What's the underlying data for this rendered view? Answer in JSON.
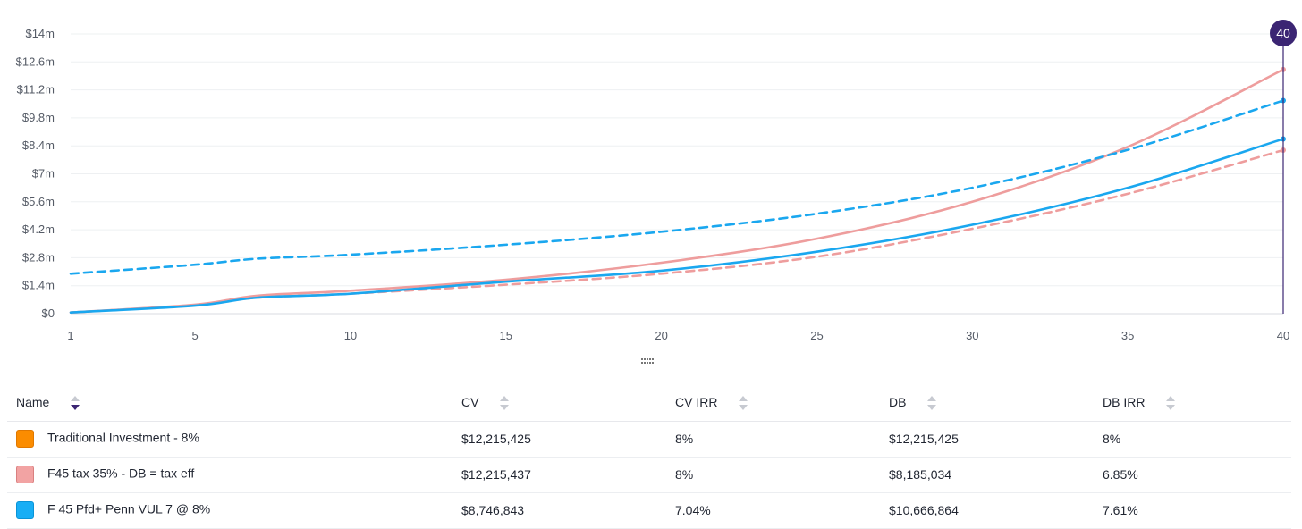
{
  "chart_data": {
    "type": "line",
    "x": [
      1,
      5,
      7,
      10,
      15,
      20,
      25,
      30,
      35,
      40
    ],
    "xticks": [
      "1",
      "5",
      "10",
      "15",
      "20",
      "25",
      "30",
      "35",
      "40"
    ],
    "yticks": [
      "$0",
      "$1.4m",
      "$2.8m",
      "$4.2m",
      "$5.6m",
      "$7m",
      "$8.4m",
      "$9.8m",
      "$11.2m",
      "$12.6m",
      "$14m"
    ],
    "ylim": [
      0,
      14000000
    ],
    "xlim": [
      1,
      40
    ],
    "grid": true,
    "series": [
      {
        "name": "F45 tax 35% - CV",
        "color": "#ee9d9d",
        "dashed": false,
        "values": [
          60000,
          450000,
          900000,
          1150000,
          1700000,
          2550000,
          3750000,
          5600000,
          8350000,
          12215437
        ]
      },
      {
        "name": "F45 tax 35% - DB",
        "color": "#ee9d9d",
        "dashed": true,
        "values": [
          60000,
          430000,
          800000,
          1000000,
          1450000,
          2000000,
          2850000,
          4250000,
          6000000,
          8185034
        ]
      },
      {
        "name": "F 45 Pfd+ Penn VUL 7 @ 8% - CV",
        "color": "#1aa7ef",
        "dashed": false,
        "values": [
          60000,
          400000,
          800000,
          1000000,
          1600000,
          2150000,
          3100000,
          4450000,
          6300000,
          8746843
        ]
      },
      {
        "name": "F 45 Pfd+ Penn VUL 7 @ 8% - DB",
        "color": "#1aa7ef",
        "dashed": true,
        "values": [
          2000000,
          2450000,
          2750000,
          2950000,
          3450000,
          4100000,
          5000000,
          6300000,
          8200000,
          10666864
        ]
      }
    ],
    "marker": {
      "label": "40",
      "x": 40,
      "color": "#3b2573"
    }
  },
  "table": {
    "headers": {
      "name": "Name",
      "cv": "CV",
      "cv_irr": "CV IRR",
      "db": "DB",
      "db_irr": "DB IRR"
    },
    "rows": [
      {
        "name": "Traditional Investment - 8%",
        "color": "#fb8c00",
        "border": "#e07800",
        "cv": "$12,215,425",
        "cv_irr": "8%",
        "db": "$12,215,425",
        "db_irr": "8%"
      },
      {
        "name": "F45 tax 35% - DB = tax eff",
        "color": "#f2a3a3",
        "border": "#d98080",
        "cv": "$12,215,437",
        "cv_irr": "8%",
        "db": "$8,185,034",
        "db_irr": "6.85%"
      },
      {
        "name": "F 45 Pfd+ Penn VUL 7 @ 8%",
        "color": "#18aef5",
        "border": "#0a93d6",
        "cv": "$8,746,843",
        "cv_irr": "7.04%",
        "db": "$10,666,864",
        "db_irr": "7.61%"
      }
    ]
  }
}
